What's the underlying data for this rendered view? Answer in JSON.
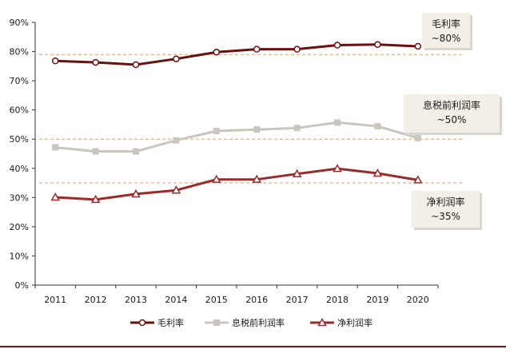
{
  "chart_data": {
    "type": "line",
    "x": [
      2011,
      2012,
      2013,
      2014,
      2015,
      2016,
      2017,
      2018,
      2019,
      2020
    ],
    "ylim": [
      0,
      90
    ],
    "ytick_labels": [
      "0%",
      "10%",
      "20%",
      "30%",
      "40%",
      "50%",
      "60%",
      "70%",
      "80%",
      "90%"
    ],
    "grid": false,
    "legend_position": "bottom",
    "series": [
      {
        "name": "毛利率",
        "marker": "circle",
        "color": "#6b0f0f",
        "values": [
          76.8,
          76.3,
          75.5,
          77.5,
          79.8,
          80.8,
          80.8,
          82.2,
          82.4,
          81.8
        ]
      },
      {
        "name": "息税前利润率",
        "marker": "square",
        "color": "#c8c6bd",
        "values": [
          47.2,
          45.8,
          45.8,
          49.6,
          52.8,
          53.3,
          53.8,
          55.7,
          54.4,
          50.4
        ]
      },
      {
        "name": "净利润率",
        "marker": "triangle",
        "color": "#9b2a2a",
        "values": [
          30.1,
          29.3,
          31.2,
          32.5,
          36.2,
          36.2,
          38.1,
          39.9,
          38.3,
          36.0
        ]
      }
    ],
    "reference_lines": [
      {
        "value": 79,
        "color": "#d9a06b"
      },
      {
        "value": 50,
        "color": "#d9a06b"
      },
      {
        "value": 35,
        "color": "#d9a06b"
      }
    ],
    "annotations": [
      {
        "line1": "毛利率",
        "line2": "~80%"
      },
      {
        "line1": "息税前利润率",
        "line2": "~50%"
      },
      {
        "line1": "净利润率",
        "line2": "~35%"
      }
    ]
  }
}
